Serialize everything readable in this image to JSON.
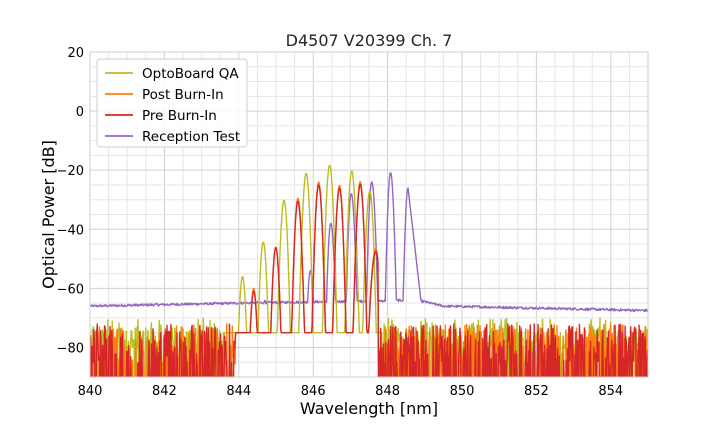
{
  "chart_data": {
    "type": "line",
    "title": "D4507 V20399 Ch. 7",
    "xlabel": "Wavelength [nm]",
    "ylabel": "Optical Power [dB]",
    "xlim": [
      840,
      855
    ],
    "ylim": [
      -90,
      20
    ],
    "xticks": [
      840,
      842,
      844,
      846,
      848,
      850,
      852,
      854
    ],
    "yticks": [
      20,
      0,
      -20,
      -40,
      -60,
      -80
    ],
    "xtick_labels": [
      "840",
      "842",
      "844",
      "846",
      "848",
      "850",
      "852",
      "854"
    ],
    "ytick_labels": [
      "20",
      "0",
      "−20",
      "−40",
      "−60",
      "−80"
    ],
    "grid": true,
    "legend_position": "upper-left",
    "series": [
      {
        "name": "OptoBoard QA",
        "color": "#bcbd22",
        "noise_floor": [
          840,
          843.6
        ],
        "noise_floor2": [
          847.85,
          855
        ],
        "peaks": [
          {
            "x": 844.1,
            "y": -56
          },
          {
            "x": 844.65,
            "y": -44
          },
          {
            "x": 845.2,
            "y": -29
          },
          {
            "x": 845.8,
            "y": -20.5
          },
          {
            "x": 846.45,
            "y": -18
          },
          {
            "x": 847.05,
            "y": -19.5
          },
          {
            "x": 847.5,
            "y": -25
          }
        ]
      },
      {
        "name": "Post Burn-In",
        "color": "#ff7f0e",
        "noise_floor": [
          840,
          843.9
        ],
        "noise_floor2": [
          847.75,
          855
        ],
        "peaks": [
          {
            "x": 844.4,
            "y": -60
          },
          {
            "x": 845.0,
            "y": -46
          },
          {
            "x": 845.6,
            "y": -29
          },
          {
            "x": 846.15,
            "y": -24
          },
          {
            "x": 846.7,
            "y": -25
          },
          {
            "x": 847.25,
            "y": -23
          },
          {
            "x": 847.65,
            "y": -33
          }
        ]
      },
      {
        "name": "Pre Burn-In",
        "color": "#d62728",
        "noise_floor": [
          840,
          843.9
        ],
        "noise_floor2": [
          847.75,
          855
        ],
        "peaks": [
          {
            "x": 844.4,
            "y": -61
          },
          {
            "x": 845.0,
            "y": -46
          },
          {
            "x": 845.6,
            "y": -30
          },
          {
            "x": 846.15,
            "y": -25
          },
          {
            "x": 846.7,
            "y": -26
          },
          {
            "x": 847.25,
            "y": -24
          },
          {
            "x": 847.65,
            "y": -34
          }
        ]
      },
      {
        "name": "Reception Test",
        "color": "#9467bd",
        "baseline": [
          {
            "x": 840,
            "y": -66
          },
          {
            "x": 844,
            "y": -65
          },
          {
            "x": 848.8,
            "y": -64
          },
          {
            "x": 849.5,
            "y": -66
          },
          {
            "x": 855,
            "y": -67.5
          }
        ],
        "peaks": [
          {
            "x": 844.7,
            "y": -64
          },
          {
            "x": 845.4,
            "y": -58
          },
          {
            "x": 845.95,
            "y": -46
          },
          {
            "x": 846.5,
            "y": -30
          },
          {
            "x": 847.05,
            "y": -20
          },
          {
            "x": 847.6,
            "y": -16
          },
          {
            "x": 848.1,
            "y": -17
          },
          {
            "x": 848.55,
            "y": -26
          }
        ]
      }
    ]
  }
}
